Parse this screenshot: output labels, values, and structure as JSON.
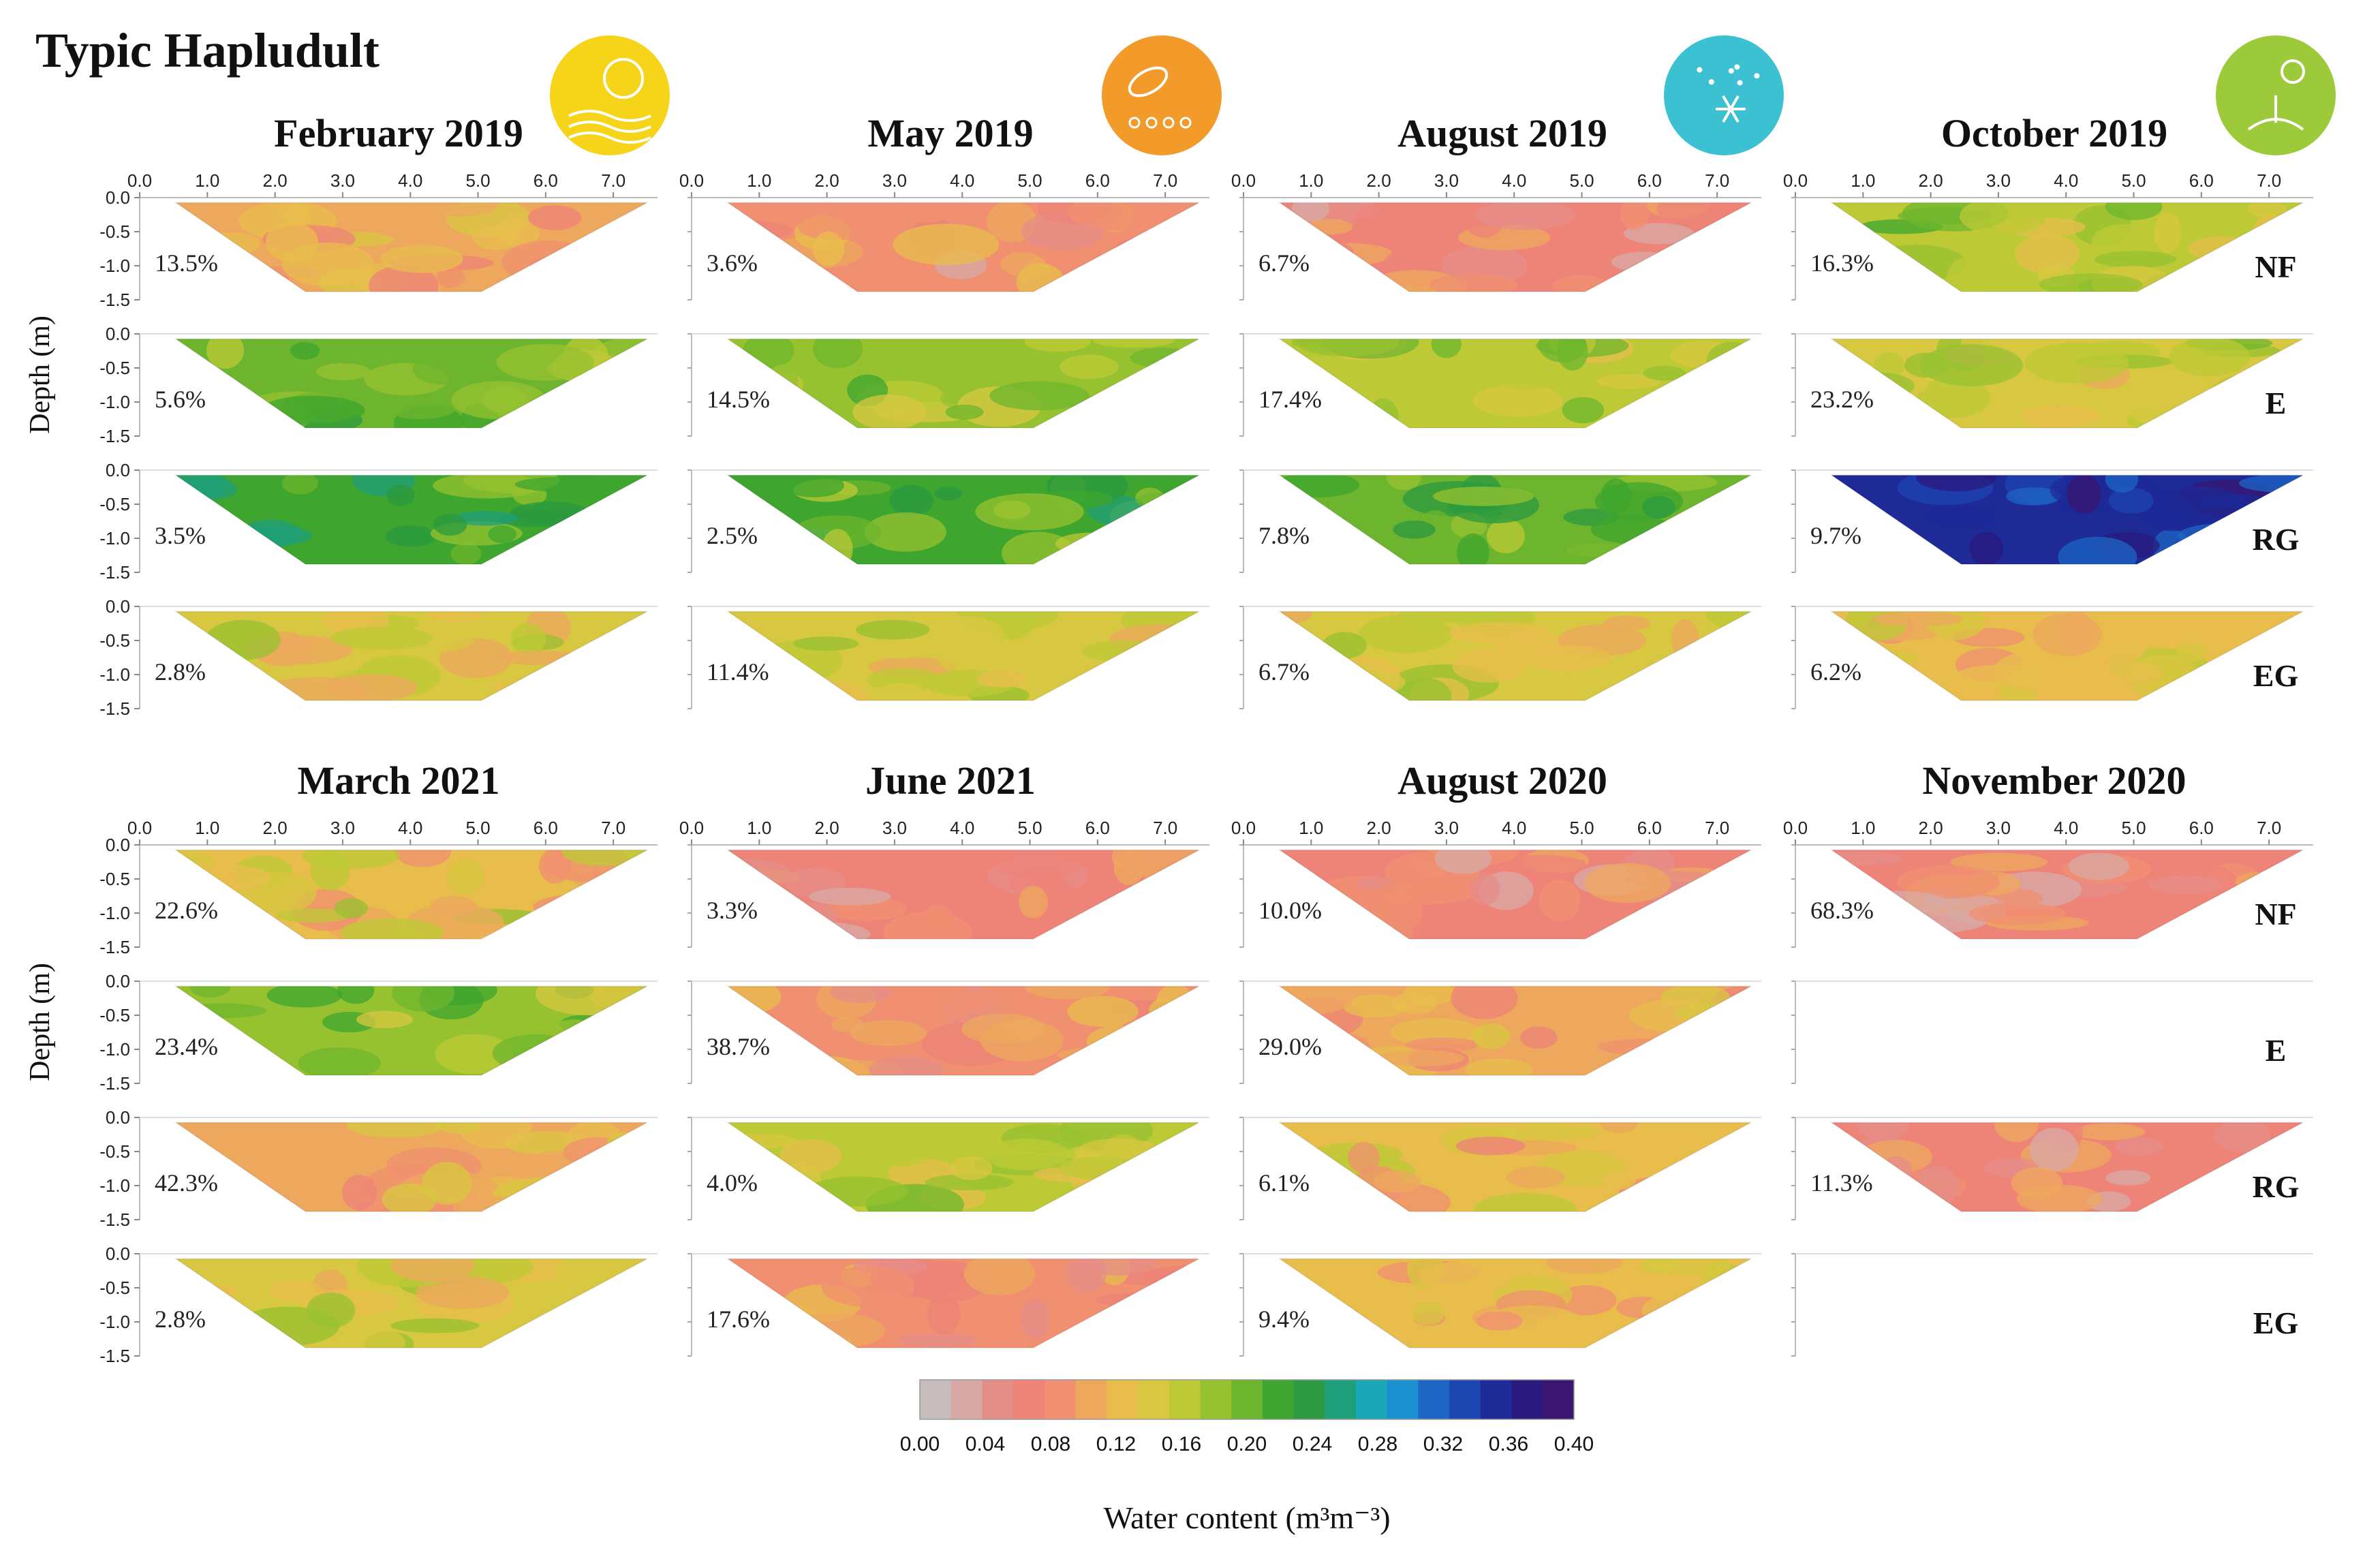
{
  "chart_data": {
    "type": "heatmap",
    "title": "Typic Hapludult",
    "xlim": [
      0.0,
      7.5
    ],
    "ylim": [
      -1.5,
      0.0
    ],
    "x_ticks": [
      "0.0",
      "1.0",
      "2.0",
      "3.0",
      "4.0",
      "5.0",
      "6.0",
      "7.0"
    ],
    "y_ticks": [
      "0.0",
      "-0.5",
      "-1.0",
      "-1.5"
    ],
    "ylabel": "Depth (m)",
    "treatments": [
      "NF",
      "E",
      "RG",
      "EG"
    ],
    "season_icons": [
      "sun-icon",
      "leaf-rain-icon",
      "snowflake-icon",
      "sprout-icon"
    ],
    "top_block": {
      "periods": [
        "February 2019",
        "May 2019",
        "August 2019",
        "October 2019"
      ],
      "rms_error": [
        [
          "13.5%",
          "5.6%",
          "3.5%",
          "2.8%"
        ],
        [
          "3.6%",
          "14.5%",
          "2.5%",
          "11.4%"
        ],
        [
          "6.7%",
          "17.4%",
          "7.8%",
          "6.7%"
        ],
        [
          "16.3%",
          "23.2%",
          "9.7%",
          "6.2%"
        ]
      ],
      "mean_water_content": [
        [
          0.1,
          0.2,
          0.22,
          0.14
        ],
        [
          0.08,
          0.18,
          0.21,
          0.15
        ],
        [
          0.07,
          0.16,
          0.2,
          0.14
        ],
        [
          0.17,
          0.15,
          0.35,
          0.12
        ]
      ]
    },
    "bottom_block": {
      "periods": [
        "March 2021",
        "June 2021",
        "August 2020",
        "November 2020"
      ],
      "rms_error": [
        [
          "22.6%",
          "23.4%",
          "42.3%",
          "2.8%"
        ],
        [
          "3.3%",
          "38.7%",
          "4.0%",
          "17.6%"
        ],
        [
          "10.0%",
          "29.0%",
          "6.1%",
          "9.4%"
        ],
        [
          "68.3%",
          "",
          "11.3%",
          ""
        ]
      ],
      "mean_water_content": [
        [
          0.13,
          0.18,
          0.11,
          0.14
        ],
        [
          0.07,
          0.09,
          0.17,
          0.09
        ],
        [
          0.07,
          0.1,
          0.12,
          0.12
        ],
        [
          0.07,
          null,
          0.07,
          null
        ]
      ]
    },
    "colorbar": {
      "ticks": [
        "0.00",
        "0.04",
        "0.08",
        "0.12",
        "0.16",
        "0.20",
        "0.24",
        "0.28",
        "0.32",
        "0.36",
        "0.40"
      ],
      "colors": [
        "#c7bcbc",
        "#d8a9a6",
        "#e58e88",
        "#ee8378",
        "#f09070",
        "#eea85e",
        "#e8bd4c",
        "#d8c740",
        "#bdc935",
        "#97c230",
        "#6db52e",
        "#3ea52e",
        "#2b9a40",
        "#1f9f7a",
        "#1aa7b8",
        "#1b8fd0",
        "#1d66c4",
        "#1e46b0",
        "#1e2a96",
        "#2a1a7e",
        "#3a1670"
      ],
      "label": "Water content (m³m⁻³)"
    }
  }
}
